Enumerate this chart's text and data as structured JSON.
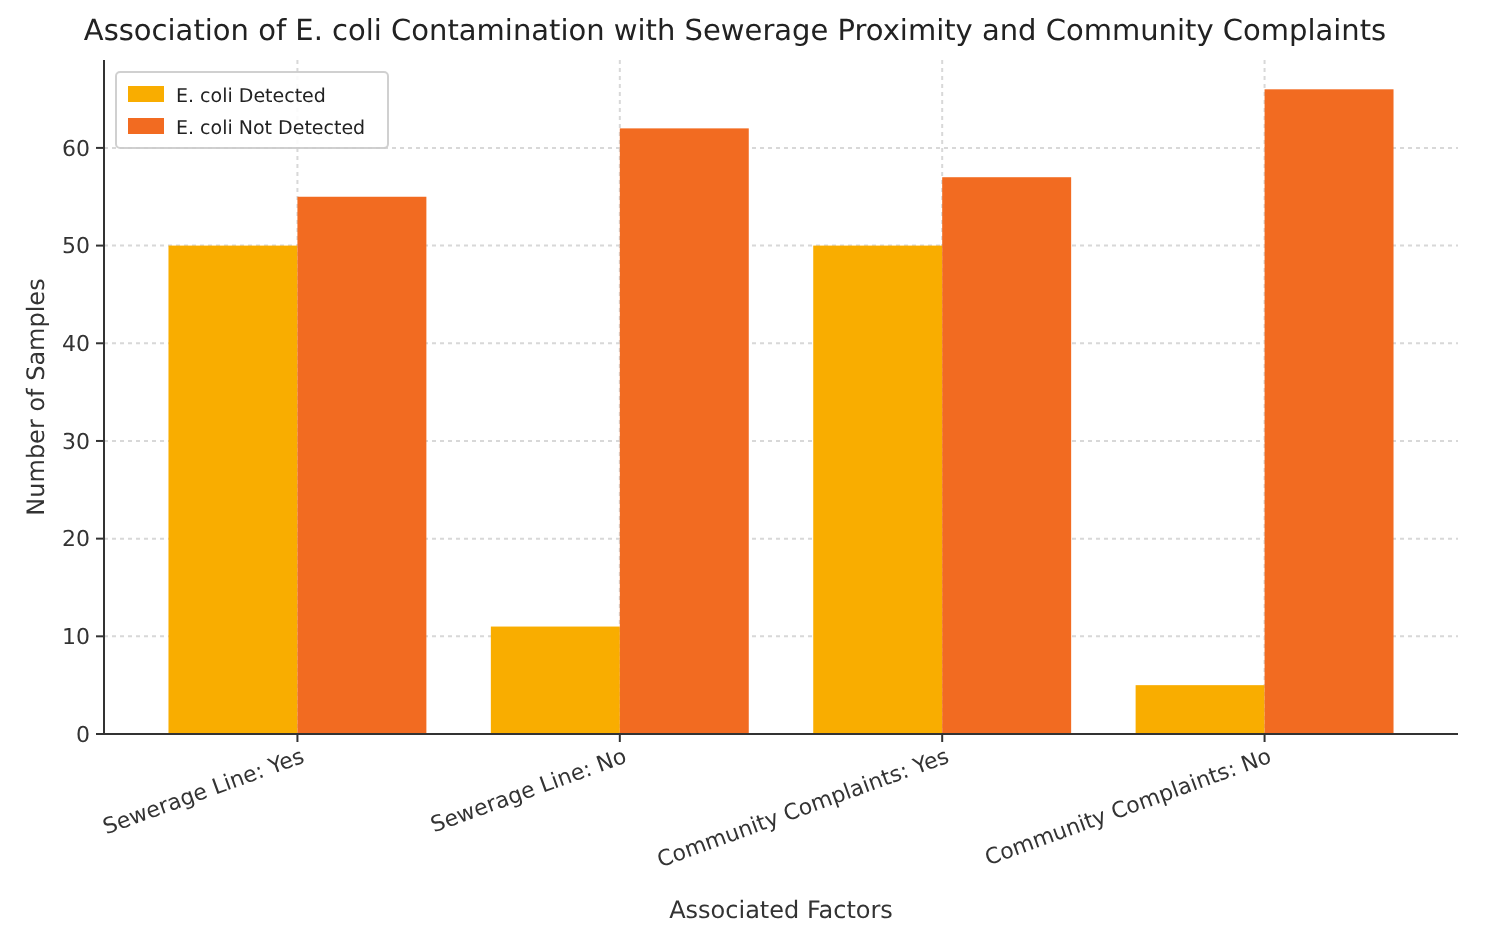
{
  "chart_data": {
    "type": "bar",
    "title": "Association of E. coli Contamination with Sewerage Proximity and Community Complaints",
    "xlabel": "Associated Factors",
    "ylabel": "Number of Samples",
    "categories": [
      "Sewerage Line: Yes",
      "Sewerage Line: No",
      "Community Complaints: Yes",
      "Community Complaints: No"
    ],
    "series": [
      {
        "name": "E. coli Detected",
        "color": "#f9ad00",
        "values": [
          50,
          11,
          50,
          5
        ]
      },
      {
        "name": "E. coli Not Detected",
        "color": "#f26b21",
        "values": [
          55,
          62,
          57,
          66
        ]
      }
    ],
    "ylim": [
      0,
      69
    ],
    "yticks": [
      0,
      10,
      20,
      30,
      40,
      50,
      60
    ],
    "grid": true,
    "legend": "top left"
  }
}
